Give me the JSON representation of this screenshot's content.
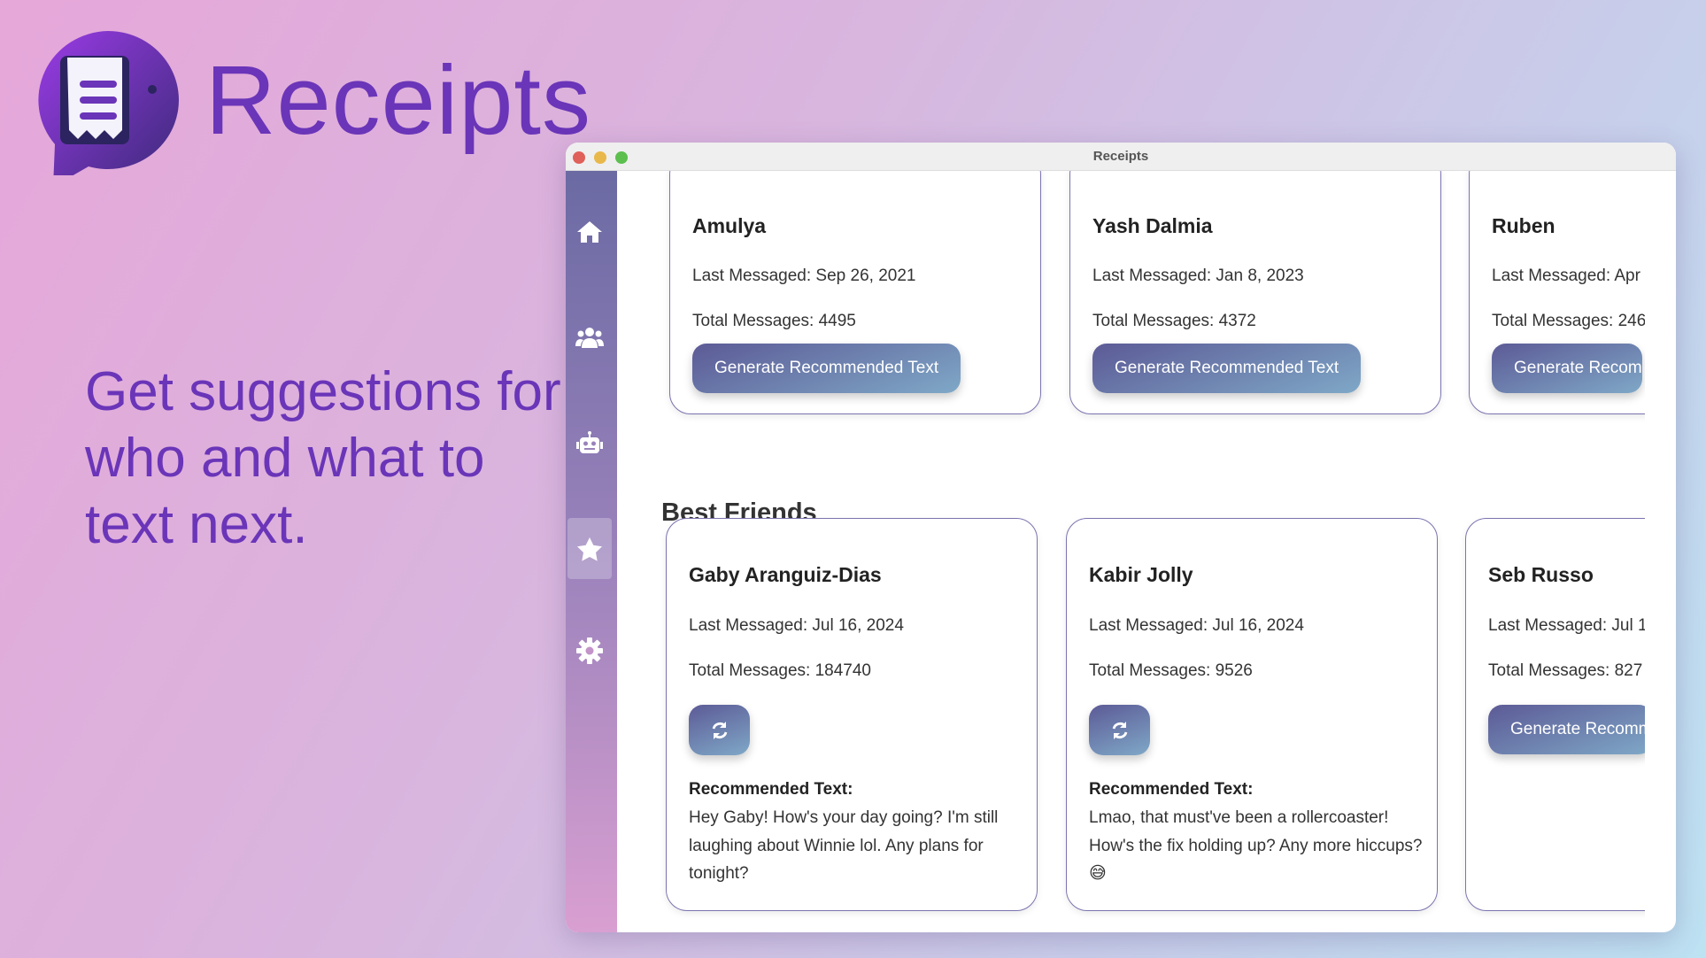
{
  "brand": {
    "name": "Receipts",
    "tagline": "Get suggestions for who and what to text next."
  },
  "window": {
    "title": "Receipts",
    "traffic_lights": [
      "#e0605a",
      "#e8b84a",
      "#5cbf4e"
    ]
  },
  "sidebar": {
    "items": [
      {
        "icon": "home-icon",
        "active": false
      },
      {
        "icon": "users-icon",
        "active": false
      },
      {
        "icon": "robot-icon",
        "active": false
      },
      {
        "icon": "star-icon",
        "active": true
      },
      {
        "icon": "gear-icon",
        "active": false
      }
    ]
  },
  "top_cards": [
    {
      "name": "Amulya",
      "last": "Last Messaged: Sep 26, 2021",
      "total": "Total Messages: 4495",
      "button": "Generate Recommended Text"
    },
    {
      "name": "Yash Dalmia",
      "last": "Last Messaged: Jan 8, 2023",
      "total": "Total Messages: 4372",
      "button": "Generate Recommended Text"
    },
    {
      "name": "Ruben",
      "last": "Last Messaged: Apr",
      "total": "Total Messages: 246",
      "button": "Generate Recom"
    }
  ],
  "section": {
    "title": "Best Friends"
  },
  "best_friends": [
    {
      "name": "Gaby Aranguiz-Dias",
      "last": "Last Messaged: Jul 16, 2024",
      "total": "Total Messages: 184740",
      "rec_label": "Recommended Text:",
      "rec_text": "Hey Gaby! How's your day going? I'm still laughing about Winnie lol. Any plans for tonight?"
    },
    {
      "name": "Kabir Jolly",
      "last": "Last Messaged: Jul 16, 2024",
      "total": "Total Messages: 9526",
      "rec_label": "Recommended Text:",
      "rec_text": "Lmao, that must've been a rollercoaster! How's the fix holding up? Any more hiccups? 😅"
    },
    {
      "name": "Seb Russo",
      "last": "Last Messaged: Jul 1",
      "total": "Total Messages: 827",
      "button": "Generate Recomm"
    }
  ]
}
